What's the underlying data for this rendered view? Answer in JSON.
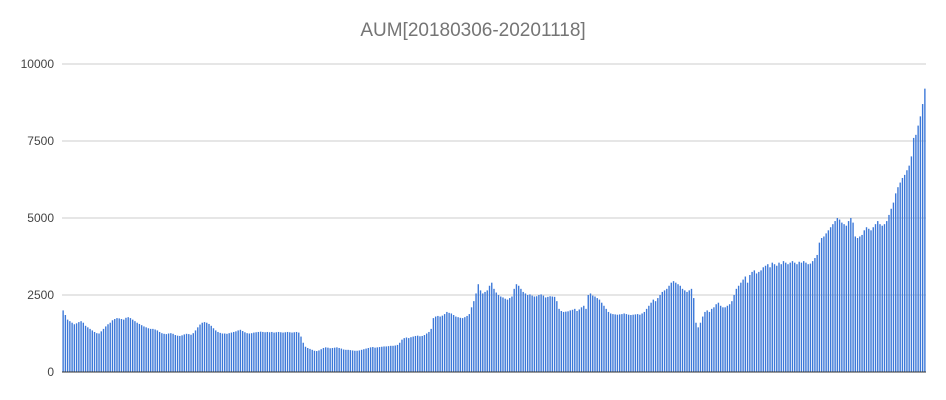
{
  "chart_data": {
    "type": "bar",
    "title": "AUM[20180306-20201118]",
    "xlabel": "",
    "ylabel": "",
    "ylim": [
      0,
      10000
    ],
    "yticks": [
      0,
      2500,
      5000,
      7500,
      10000
    ],
    "ytick_labels": [
      "0",
      "2500",
      "5000",
      "7500",
      "10000"
    ],
    "grid": true,
    "legend": "none",
    "bar_color": "#3c78d8",
    "grid_color": "#cccccc",
    "baseline_color": "#333333",
    "values": [
      2000,
      1850,
      1700,
      1650,
      1600,
      1550,
      1580,
      1620,
      1650,
      1600,
      1500,
      1450,
      1400,
      1350,
      1300,
      1260,
      1250,
      1320,
      1400,
      1480,
      1550,
      1600,
      1680,
      1720,
      1750,
      1740,
      1720,
      1700,
      1760,
      1780,
      1750,
      1700,
      1650,
      1600,
      1560,
      1520,
      1480,
      1450,
      1420,
      1400,
      1400,
      1380,
      1350,
      1300,
      1260,
      1240,
      1230,
      1250,
      1260,
      1240,
      1200,
      1180,
      1170,
      1190,
      1220,
      1240,
      1230,
      1210,
      1260,
      1350,
      1450,
      1540,
      1600,
      1620,
      1600,
      1560,
      1500,
      1420,
      1350,
      1300,
      1270,
      1250,
      1250,
      1240,
      1260,
      1280,
      1300,
      1320,
      1350,
      1370,
      1330,
      1290,
      1260,
      1250,
      1260,
      1280,
      1290,
      1300,
      1310,
      1300,
      1290,
      1300,
      1290,
      1300,
      1280,
      1290,
      1300,
      1290,
      1280,
      1290,
      1300,
      1290,
      1280,
      1290,
      1300,
      1280,
      1150,
      950,
      820,
      780,
      750,
      720,
      690,
      680,
      700,
      740,
      780,
      800,
      790,
      770,
      780,
      790,
      800,
      780,
      760,
      730,
      720,
      720,
      710,
      700,
      690,
      690,
      700,
      720,
      740,
      760,
      780,
      800,
      810,
      790,
      800,
      810,
      820,
      830,
      830,
      840,
      850,
      850,
      860,
      880,
      950,
      1050,
      1100,
      1120,
      1100,
      1130,
      1150,
      1170,
      1180,
      1160,
      1170,
      1200,
      1250,
      1300,
      1400,
      1750,
      1800,
      1820,
      1800,
      1830,
      1880,
      1950,
      1920,
      1900,
      1850,
      1800,
      1780,
      1760,
      1750,
      1780,
      1820,
      1880,
      2100,
      2300,
      2550,
      2850,
      2650,
      2550,
      2600,
      2650,
      2800,
      2900,
      2700,
      2580,
      2500,
      2450,
      2420,
      2380,
      2350,
      2400,
      2450,
      2700,
      2850,
      2800,
      2700,
      2600,
      2550,
      2500,
      2520,
      2480,
      2450,
      2460,
      2500,
      2520,
      2480,
      2420,
      2440,
      2460,
      2450,
      2440,
      2300,
      2050,
      1980,
      1950,
      1960,
      1970,
      2000,
      2020,
      2050,
      1980,
      2030,
      2100,
      2150,
      2050,
      2500,
      2550,
      2480,
      2450,
      2400,
      2350,
      2250,
      2150,
      2050,
      1950,
      1900,
      1880,
      1870,
      1860,
      1870,
      1880,
      1900,
      1880,
      1860,
      1850,
      1860,
      1870,
      1880,
      1860,
      1900,
      1950,
      2050,
      2150,
      2250,
      2350,
      2300,
      2400,
      2500,
      2600,
      2650,
      2700,
      2800,
      2900,
      2950,
      2900,
      2850,
      2800,
      2700,
      2650,
      2600,
      2650,
      2700,
      2400,
      1600,
      1450,
      1600,
      1800,
      1950,
      2000,
      1950,
      2050,
      2100,
      2200,
      2250,
      2150,
      2100,
      2100,
      2150,
      2200,
      2300,
      2500,
      2700,
      2800,
      2900,
      3000,
      3100,
      2900,
      3150,
      3250,
      3300,
      3200,
      3250,
      3300,
      3400,
      3450,
      3500,
      3400,
      3550,
      3500,
      3450,
      3550,
      3500,
      3600,
      3550,
      3500,
      3550,
      3600,
      3550,
      3500,
      3580,
      3550,
      3600,
      3550,
      3500,
      3520,
      3600,
      3700,
      3800,
      4200,
      4350,
      4400,
      4500,
      4600,
      4700,
      4800,
      4900,
      5000,
      4950,
      4850,
      4800,
      4750,
      4900,
      5000,
      4850,
      4400,
      4350,
      4400,
      4450,
      4600,
      4700,
      4650,
      4600,
      4700,
      4800,
      4900,
      4800,
      4750,
      4800,
      4900,
      5100,
      5300,
      5500,
      5800,
      6000,
      6150,
      6300,
      6400,
      6550,
      6700,
      7000,
      7600,
      7700,
      8000,
      8300,
      8700,
      9200
    ]
  }
}
